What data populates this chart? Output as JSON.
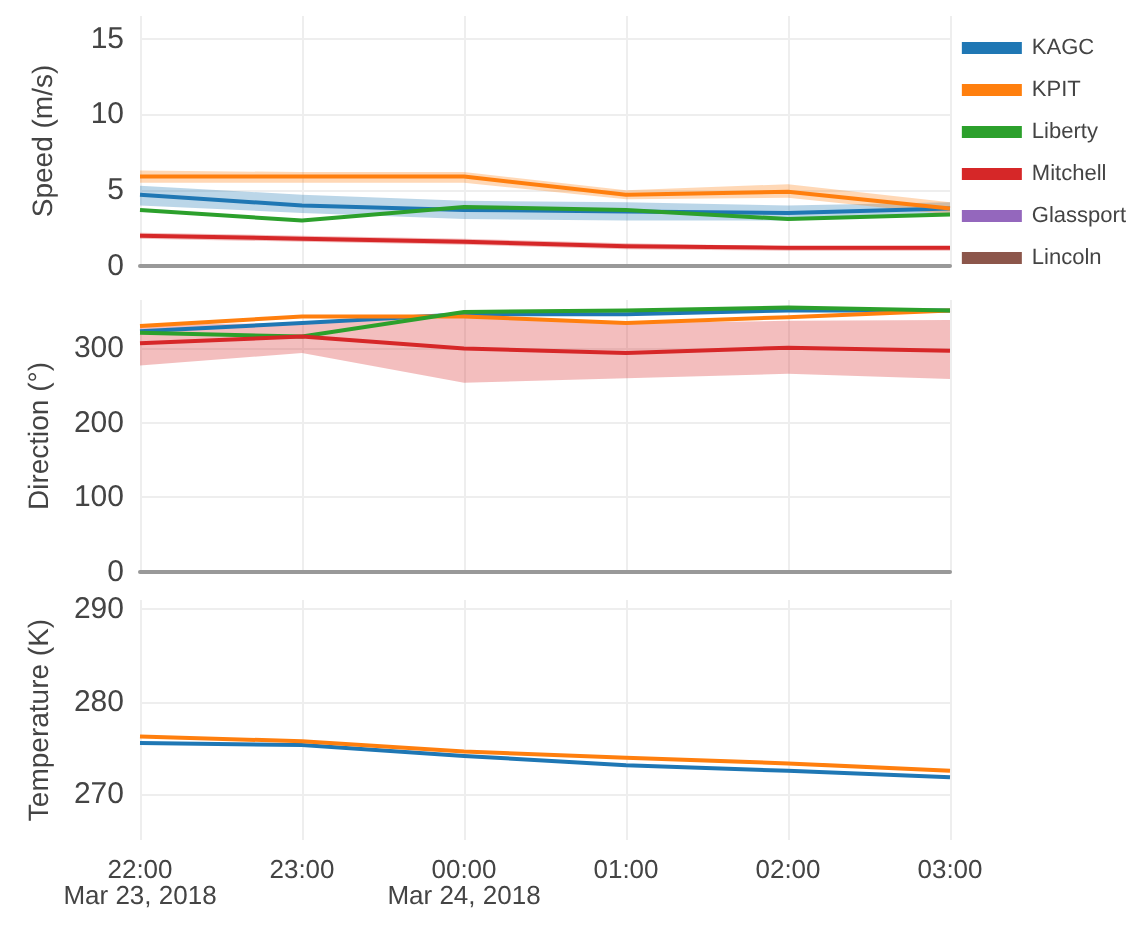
{
  "chart_data": [
    {
      "type": "line",
      "ylabel": "Speed (m/s)",
      "x": [
        "2018-03-23T22:00",
        "2018-03-23T23:00",
        "2018-03-24T00:00",
        "2018-03-24T01:00",
        "2018-03-24T02:00",
        "2018-03-24T03:00"
      ],
      "xlim": [
        "2018-03-23T22:00",
        "2018-03-24T03:00"
      ],
      "xticks": [
        {
          "value": "2018-03-23T22:00",
          "label": null
        },
        {
          "value": "2018-03-23T23:00",
          "label": null
        },
        {
          "value": "2018-03-24T00:00",
          "label": null
        },
        {
          "value": "2018-03-24T01:00",
          "label": null
        },
        {
          "value": "2018-03-24T02:00",
          "label": null
        },
        {
          "value": "2018-03-24T03:00",
          "label": null
        }
      ],
      "ylim": [
        0,
        16.5
      ],
      "yticks": [
        0,
        5,
        10,
        15
      ],
      "grid": true,
      "tick_labels": "y",
      "legend": "right",
      "series": [
        {
          "name": "KAGC",
          "color": "#1f77b4",
          "values": [
            4.7,
            4.0,
            3.7,
            3.6,
            3.5,
            3.8
          ],
          "lower": [
            4.0,
            3.5,
            3.1,
            3.0,
            3.0,
            3.4
          ],
          "upper": [
            5.3,
            4.7,
            4.3,
            4.2,
            4.0,
            4.2
          ]
        },
        {
          "name": "KPIT",
          "color": "#ff7f0e",
          "values": [
            5.9,
            5.9,
            5.9,
            4.7,
            4.9,
            3.8
          ],
          "lower": [
            5.5,
            5.5,
            5.5,
            4.4,
            4.5,
            3.4
          ],
          "upper": [
            6.3,
            6.2,
            6.2,
            5.0,
            5.4,
            4.2
          ]
        },
        {
          "name": "Liberty",
          "color": "#2ca02c",
          "values": [
            3.7,
            3.0,
            3.9,
            3.7,
            3.1,
            3.4
          ]
        },
        {
          "name": "Mitchell",
          "color": "#d62728",
          "values": [
            2.0,
            1.8,
            1.6,
            1.3,
            1.2,
            1.2
          ],
          "lower": [
            1.8,
            1.6,
            1.4,
            1.1,
            1.0,
            1.0
          ],
          "upper": [
            2.2,
            2.0,
            1.8,
            1.5,
            1.3,
            1.3
          ]
        },
        {
          "name": "Glassport",
          "color": "#9467bd",
          "values": [
            null,
            null,
            null,
            null,
            null,
            null
          ]
        },
        {
          "name": "Lincoln",
          "color": "#8c564b",
          "values": [
            null,
            null,
            null,
            null,
            null,
            null
          ]
        }
      ]
    },
    {
      "type": "line",
      "ylabel": "Direction (°)",
      "x": [
        "2018-03-23T22:00",
        "2018-03-23T23:00",
        "2018-03-24T00:00",
        "2018-03-24T01:00",
        "2018-03-24T02:00",
        "2018-03-24T03:00"
      ],
      "xlim": [
        "2018-03-23T22:00",
        "2018-03-24T03:00"
      ],
      "xticks": [
        {
          "value": "2018-03-23T22:00",
          "label": null
        },
        {
          "value": "2018-03-23T23:00",
          "label": null
        },
        {
          "value": "2018-03-24T00:00",
          "label": null
        },
        {
          "value": "2018-03-24T01:00",
          "label": null
        },
        {
          "value": "2018-03-24T02:00",
          "label": null
        },
        {
          "value": "2018-03-24T03:00",
          "label": null
        }
      ],
      "ylim": [
        0,
        365
      ],
      "yticks": [
        0,
        100,
        200,
        300
      ],
      "grid": true,
      "tick_labels": "y",
      "series": [
        {
          "color": "#1f77b4",
          "values": [
            323,
            334,
            346,
            346,
            351,
            351
          ]
        },
        {
          "color": "#ff7f0e",
          "values": [
            330,
            343,
            343,
            334,
            342,
            351
          ]
        },
        {
          "color": "#2ca02c",
          "values": [
            321,
            316,
            349,
            351,
            355,
            351
          ]
        },
        {
          "color": "#d62728",
          "values": [
            307,
            316,
            300,
            294,
            301,
            297
          ],
          "lower": [
            277,
            294,
            254,
            260,
            266,
            259
          ],
          "upper": [
            332,
            334,
            342,
            334,
            337,
            338
          ]
        }
      ]
    },
    {
      "type": "line",
      "ylabel": "Temperature (K)",
      "x": [
        "2018-03-23T22:00",
        "2018-03-23T23:00",
        "2018-03-24T00:00",
        "2018-03-24T01:00",
        "2018-03-24T02:00",
        "2018-03-24T03:00"
      ],
      "xlim": [
        "2018-03-23T22:00",
        "2018-03-24T03:00"
      ],
      "xticks": [
        {
          "value": "2018-03-23T22:00",
          "label": "22:00\nMar 23, 2018"
        },
        {
          "value": "2018-03-23T23:00",
          "label": "23:00"
        },
        {
          "value": "2018-03-24T00:00",
          "label": "00:00\nMar 24, 2018"
        },
        {
          "value": "2018-03-24T01:00",
          "label": "01:00"
        },
        {
          "value": "2018-03-24T02:00",
          "label": "02:00"
        },
        {
          "value": "2018-03-24T03:00",
          "label": "03:00"
        }
      ],
      "ylim": [
        265,
        291
      ],
      "yticks": [
        270,
        280,
        290
      ],
      "grid": true,
      "series": [
        {
          "color": "#1f77b4",
          "values": [
            275.5,
            275.3,
            274.1,
            273.1,
            272.5,
            271.8
          ]
        },
        {
          "color": "#ff7f0e",
          "values": [
            276.2,
            275.7,
            274.6,
            273.9,
            273.3,
            272.5
          ]
        }
      ]
    }
  ]
}
